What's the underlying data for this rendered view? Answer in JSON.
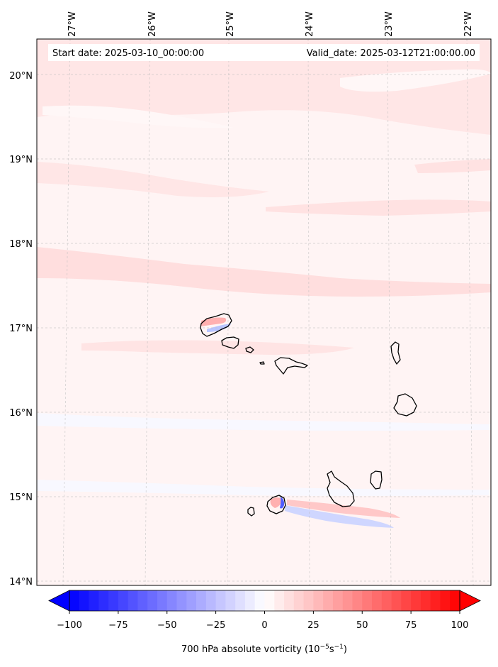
{
  "header": {
    "start_date": "Start date: 2025-03-10_00:00:00",
    "valid_date": "Valid_date: 2025-03-12T21:00:00.00"
  },
  "map": {
    "variable": "700 hPa absolute vorticity",
    "longitude_labels": [
      "27°W",
      "26°W",
      "25°W",
      "24°W",
      "23°W",
      "22°W"
    ],
    "latitude_labels": [
      "20°N",
      "19°N",
      "18°N",
      "17°N",
      "16°N",
      "15°N",
      "14°N"
    ],
    "lon_range": [
      -27.35,
      -21.8
    ],
    "lat_range": [
      13.95,
      20.4
    ],
    "features": [
      {
        "name": "Santo Antão",
        "kind": "island"
      },
      {
        "name": "São Vicente",
        "kind": "island"
      },
      {
        "name": "São Nicolau",
        "kind": "island"
      },
      {
        "name": "Sal",
        "kind": "island"
      },
      {
        "name": "Boa Vista",
        "kind": "island"
      },
      {
        "name": "Santiago",
        "kind": "island"
      },
      {
        "name": "Maio",
        "kind": "island"
      },
      {
        "name": "Fogo",
        "kind": "island"
      },
      {
        "name": "Brava",
        "kind": "island"
      }
    ]
  },
  "colorbar": {
    "ticks": [
      "−100",
      "−75",
      "−50",
      "−25",
      "0",
      "25",
      "50",
      "75",
      "100"
    ],
    "tick_values": [
      -100,
      -75,
      -50,
      -25,
      0,
      25,
      50,
      75,
      100
    ],
    "range": [
      -100,
      100
    ],
    "extend": "both",
    "colormap": "bwr",
    "colors": {
      "low": "#0000ff",
      "mid": "#ffffff",
      "high": "#ff0000"
    }
  }
}
